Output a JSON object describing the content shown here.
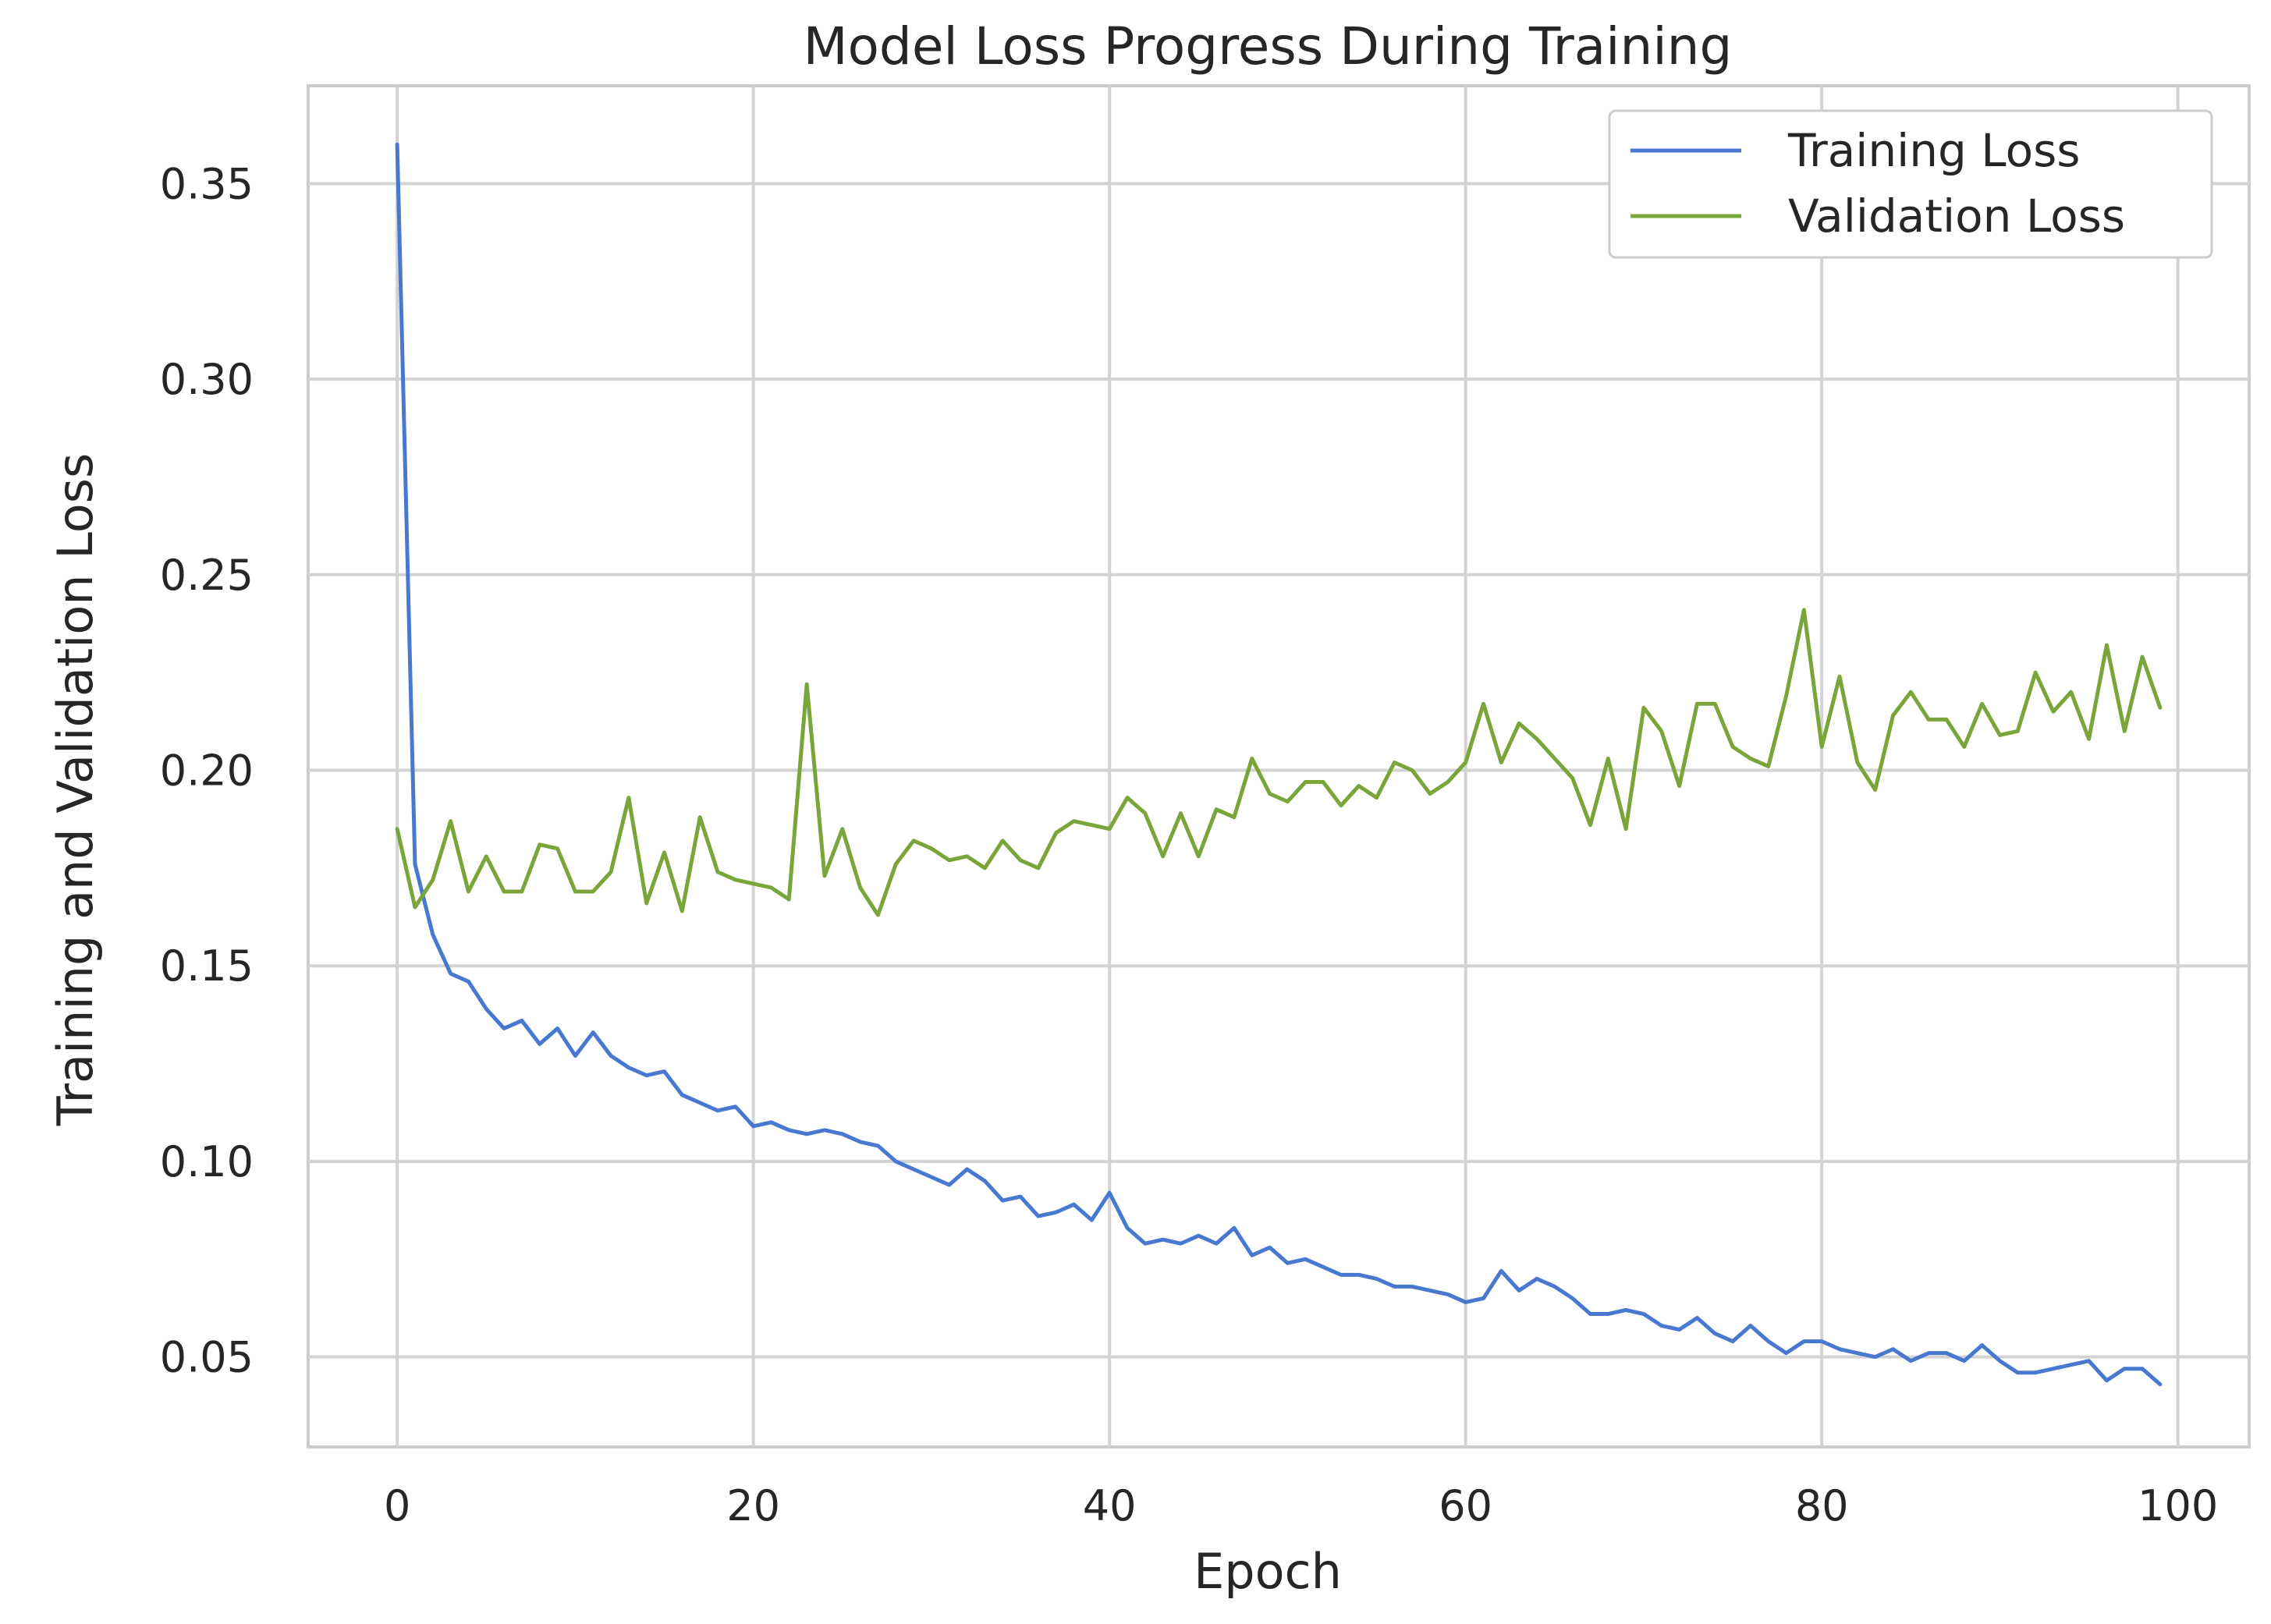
{
  "chart_data": {
    "type": "line",
    "title": "Model Loss Progress During Training",
    "xlabel": "Epoch",
    "ylabel": "Training and Validation Loss",
    "xlim": [
      -5,
      104
    ],
    "ylim": [
      0.027,
      0.375
    ],
    "xticks": [
      0,
      20,
      40,
      60,
      80,
      100
    ],
    "yticks": [
      0.05,
      0.1,
      0.15,
      0.2,
      0.25,
      0.3,
      0.35
    ],
    "xtick_labels": [
      "0",
      "20",
      "40",
      "60",
      "80",
      "100"
    ],
    "ytick_labels": [
      "0.05",
      "0.10",
      "0.15",
      "0.20",
      "0.25",
      "0.30",
      "0.35"
    ],
    "grid": true,
    "legend_position": "top-right",
    "x": [
      0,
      1,
      2,
      3,
      4,
      5,
      6,
      7,
      8,
      9,
      10,
      11,
      12,
      13,
      14,
      15,
      16,
      17,
      18,
      19,
      20,
      21,
      22,
      23,
      24,
      25,
      26,
      27,
      28,
      29,
      30,
      31,
      32,
      33,
      34,
      35,
      36,
      37,
      38,
      39,
      40,
      41,
      42,
      43,
      44,
      45,
      46,
      47,
      48,
      49,
      50,
      51,
      52,
      53,
      54,
      55,
      56,
      57,
      58,
      59,
      60,
      61,
      62,
      63,
      64,
      65,
      66,
      67,
      68,
      69,
      70,
      71,
      72,
      73,
      74,
      75,
      76,
      77,
      78,
      79,
      80,
      81,
      82,
      83,
      84,
      85,
      86,
      87,
      88,
      89,
      90,
      91,
      92,
      93,
      94,
      95,
      96,
      97,
      98,
      99
    ],
    "series": [
      {
        "name": "Training Loss",
        "color": "#4878d0",
        "values": [
          0.36,
          0.176,
          0.158,
          0.148,
          0.146,
          0.139,
          0.134,
          0.136,
          0.13,
          0.134,
          0.127,
          0.133,
          0.127,
          0.124,
          0.122,
          0.123,
          0.117,
          0.115,
          0.113,
          0.114,
          0.109,
          0.11,
          0.108,
          0.107,
          0.108,
          0.107,
          0.105,
          0.104,
          0.1,
          0.098,
          0.096,
          0.094,
          0.098,
          0.095,
          0.09,
          0.091,
          0.086,
          0.087,
          0.089,
          0.085,
          0.092,
          0.083,
          0.079,
          0.08,
          0.079,
          0.081,
          0.079,
          0.083,
          0.076,
          0.078,
          0.074,
          0.075,
          0.073,
          0.071,
          0.071,
          0.07,
          0.068,
          0.068,
          0.067,
          0.066,
          0.064,
          0.065,
          0.072,
          0.067,
          0.07,
          0.068,
          0.065,
          0.061,
          0.061,
          0.062,
          0.061,
          0.058,
          0.057,
          0.06,
          0.056,
          0.054,
          0.058,
          0.054,
          0.051,
          0.054,
          0.054,
          0.052,
          0.051,
          0.05,
          0.052,
          0.049,
          0.051,
          0.051,
          0.049,
          0.053,
          0.049,
          0.046,
          0.046,
          0.047,
          0.048,
          0.049,
          0.044,
          0.047,
          0.047,
          0.043
        ]
      },
      {
        "name": "Validation Loss",
        "color": "#7aa53a",
        "values": [
          0.185,
          0.165,
          0.172,
          0.187,
          0.169,
          0.178,
          0.169,
          0.169,
          0.181,
          0.18,
          0.169,
          0.169,
          0.174,
          0.193,
          0.166,
          0.179,
          0.164,
          0.188,
          0.174,
          0.172,
          0.171,
          0.17,
          0.167,
          0.222,
          0.173,
          0.185,
          0.17,
          0.163,
          0.176,
          0.182,
          0.18,
          0.177,
          0.178,
          0.175,
          0.182,
          0.177,
          0.175,
          0.184,
          0.187,
          0.186,
          0.185,
          0.193,
          0.189,
          0.178,
          0.189,
          0.178,
          0.19,
          0.188,
          0.203,
          0.194,
          0.192,
          0.197,
          0.197,
          0.191,
          0.196,
          0.193,
          0.202,
          0.2,
          0.194,
          0.197,
          0.202,
          0.217,
          0.202,
          0.212,
          0.208,
          0.203,
          0.198,
          0.186,
          0.203,
          0.185,
          0.216,
          0.21,
          0.196,
          0.217,
          0.217,
          0.206,
          0.203,
          0.201,
          0.219,
          0.241,
          0.206,
          0.224,
          0.202,
          0.195,
          0.214,
          0.22,
          0.213,
          0.213,
          0.206,
          0.217,
          0.209,
          0.21,
          0.225,
          0.215,
          0.22,
          0.208,
          0.232,
          0.21,
          0.229,
          0.216
        ]
      }
    ]
  }
}
